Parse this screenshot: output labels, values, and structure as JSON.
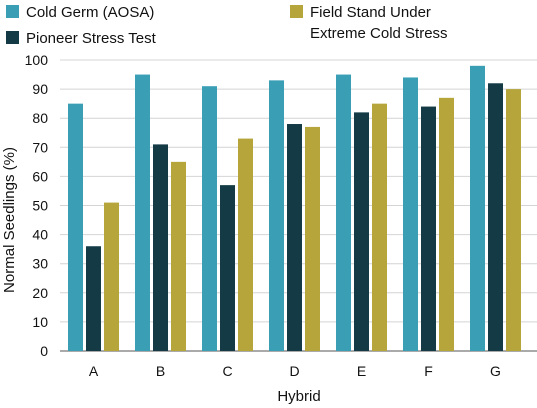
{
  "chart_data": {
    "type": "bar",
    "title": "",
    "xlabel": "Hybrid",
    "ylabel": "Normal Seedlings (%)",
    "ylim": [
      0,
      100
    ],
    "yticks": [
      0,
      10,
      20,
      30,
      40,
      50,
      60,
      70,
      80,
      90,
      100
    ],
    "grid": true,
    "legend_position": "top",
    "categories": [
      "A",
      "B",
      "C",
      "D",
      "E",
      "F",
      "G"
    ],
    "series": [
      {
        "name": "Cold Germ (AOSA)",
        "color": "#3a9fb5",
        "values": [
          85,
          95,
          91,
          93,
          95,
          94,
          98
        ]
      },
      {
        "name": "Pioneer Stress Test",
        "color": "#133a45",
        "values": [
          36,
          71,
          57,
          78,
          82,
          84,
          92
        ]
      },
      {
        "name": "Field Stand Under Extreme Cold Stress",
        "color": "#b5a53b",
        "values": [
          51,
          65,
          73,
          77,
          85,
          87,
          90
        ]
      }
    ],
    "legend": [
      {
        "series": 0,
        "lines": [
          "Cold Germ (AOSA)"
        ]
      },
      {
        "series": 1,
        "lines": [
          "Pioneer Stress Test"
        ]
      },
      {
        "series": 2,
        "lines": [
          "Field Stand Under",
          "Extreme Cold Stress"
        ]
      }
    ]
  }
}
